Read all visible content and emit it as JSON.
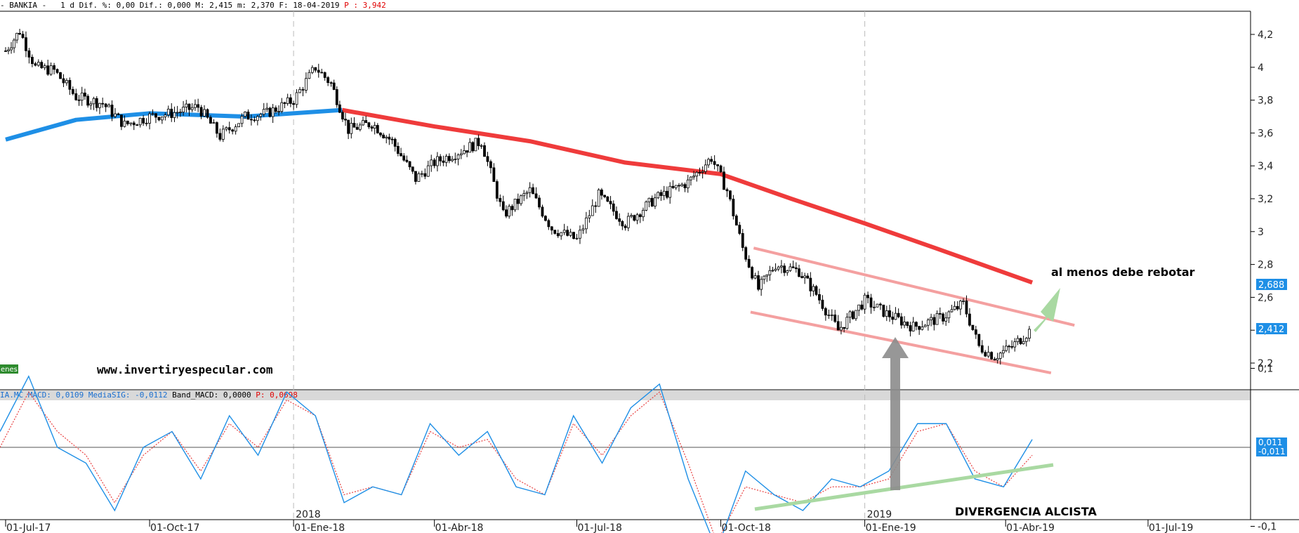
{
  "header": {
    "symbol": "- BANKIA -",
    "period": "1 d",
    "dif_pct": "Dif. %: 0,00",
    "dif": "Dif.: 0,000",
    "max": "M: 2,415",
    "min": "m: 2,370",
    "date": "F: 18-04-2019",
    "p": "P : 3,942"
  },
  "indicator_header": {
    "symbol": "IA.MC",
    "macd": "MACD: 0,0109",
    "signal": "MediaSIG: -0,0112",
    "band": "Band_MACD: 0,0000",
    "p": "P: 0,0698"
  },
  "volume_tag": "enes",
  "annotations": {
    "url": "www.invertiryespecular.com",
    "rebound": "al menos debe rebotar",
    "divergence": "DIVERGENCIA ALCISTA"
  },
  "price_labels": {
    "ma_value": "2,688",
    "last_value": "2,412",
    "ma_color": "#1e8fe6",
    "last_color": "#1e8fe6"
  },
  "macd_labels": {
    "macd_value": "0,011",
    "signal_value": "-0,011"
  },
  "colors": {
    "ma_down": "#ef3b3b",
    "ma_up": "#1e8fe6",
    "channel": "#f4a0a0",
    "up_arrow": "#a9d9a2",
    "gray_arrow": "#8c8c8c",
    "macd": "#1e8fe6",
    "signal": "#e84040",
    "divergence_line": "#a9d9a2"
  },
  "chart_data": [
    {
      "type": "candlestick",
      "title": "",
      "ylim": [
        2.05,
        4.3
      ],
      "yticks": [
        "4,2",
        "4",
        "3,8",
        "3,6",
        "3,4",
        "3,2",
        "3",
        "2,8",
        "2,6",
        "2,4",
        "2,2"
      ],
      "ytick_values": [
        4.2,
        4.0,
        3.8,
        3.6,
        3.4,
        3.2,
        3.0,
        2.8,
        2.6,
        2.4,
        2.2
      ],
      "x_labels": [
        "01-Jul-17",
        "01-Oct-17",
        "01-Ene-18",
        "01-Abr-18",
        "01-Jul-18",
        "01-Oct-18",
        "01-Ene-19",
        "01-Abr-19",
        "01-Jul-19"
      ],
      "year_labels": [
        "2018",
        "2019"
      ],
      "close": [
        {
          "x": "2017-07-01",
          "y": 4.1
        },
        {
          "x": "2017-07-10",
          "y": 4.22
        },
        {
          "x": "2017-07-20",
          "y": 4.0
        },
        {
          "x": "2017-08-01",
          "y": 3.98
        },
        {
          "x": "2017-08-15",
          "y": 3.82
        },
        {
          "x": "2017-09-01",
          "y": 3.78
        },
        {
          "x": "2017-09-15",
          "y": 3.65
        },
        {
          "x": "2017-10-01",
          "y": 3.7
        },
        {
          "x": "2017-10-15",
          "y": 3.72
        },
        {
          "x": "2017-11-01",
          "y": 3.76
        },
        {
          "x": "2017-11-15",
          "y": 3.58
        },
        {
          "x": "2017-12-01",
          "y": 3.7
        },
        {
          "x": "2017-12-15",
          "y": 3.72
        },
        {
          "x": "2018-01-01",
          "y": 3.8
        },
        {
          "x": "2018-01-15",
          "y": 4.0
        },
        {
          "x": "2018-01-25",
          "y": 3.9
        },
        {
          "x": "2018-02-05",
          "y": 3.62
        },
        {
          "x": "2018-02-20",
          "y": 3.66
        },
        {
          "x": "2018-03-05",
          "y": 3.55
        },
        {
          "x": "2018-03-20",
          "y": 3.32
        },
        {
          "x": "2018-04-01",
          "y": 3.42
        },
        {
          "x": "2018-04-20",
          "y": 3.5
        },
        {
          "x": "2018-05-01",
          "y": 3.55
        },
        {
          "x": "2018-05-15",
          "y": 3.1
        },
        {
          "x": "2018-06-01",
          "y": 3.25
        },
        {
          "x": "2018-06-15",
          "y": 3.02
        },
        {
          "x": "2018-07-01",
          "y": 2.95
        },
        {
          "x": "2018-07-15",
          "y": 3.22
        },
        {
          "x": "2018-08-01",
          "y": 3.05
        },
        {
          "x": "2018-08-20",
          "y": 3.2
        },
        {
          "x": "2018-09-10",
          "y": 3.3
        },
        {
          "x": "2018-09-25",
          "y": 3.45
        },
        {
          "x": "2018-10-05",
          "y": 3.25
        },
        {
          "x": "2018-10-15",
          "y": 2.9
        },
        {
          "x": "2018-10-25",
          "y": 2.65
        },
        {
          "x": "2018-11-05",
          "y": 2.8
        },
        {
          "x": "2018-11-20",
          "y": 2.76
        },
        {
          "x": "2018-12-01",
          "y": 2.62
        },
        {
          "x": "2018-12-15",
          "y": 2.4
        },
        {
          "x": "2019-01-01",
          "y": 2.58
        },
        {
          "x": "2019-01-15",
          "y": 2.5
        },
        {
          "x": "2019-02-01",
          "y": 2.42
        },
        {
          "x": "2019-02-20",
          "y": 2.48
        },
        {
          "x": "2019-03-05",
          "y": 2.56
        },
        {
          "x": "2019-03-15",
          "y": 2.3
        },
        {
          "x": "2019-03-25",
          "y": 2.24
        },
        {
          "x": "2019-04-05",
          "y": 2.3
        },
        {
          "x": "2019-04-18",
          "y": 2.41
        }
      ],
      "moving_average": [
        {
          "x": "2017-07-01",
          "y": 3.56
        },
        {
          "x": "2017-08-15",
          "y": 3.68
        },
        {
          "x": "2017-10-01",
          "y": 3.72
        },
        {
          "x": "2017-12-01",
          "y": 3.7
        },
        {
          "x": "2018-02-01",
          "y": 3.74
        },
        {
          "x": "2018-04-01",
          "y": 3.64
        },
        {
          "x": "2018-06-01",
          "y": 3.55
        },
        {
          "x": "2018-08-01",
          "y": 3.42
        },
        {
          "x": "2018-10-01",
          "y": 3.35
        },
        {
          "x": "2018-11-15",
          "y": 3.2
        },
        {
          "x": "2019-01-01",
          "y": 3.05
        },
        {
          "x": "2019-02-15",
          "y": 2.9
        },
        {
          "x": "2019-04-18",
          "y": 2.69
        }
      ],
      "channel": {
        "upper": [
          {
            "x": "2018-10-22",
            "y": 2.9
          },
          {
            "x": "2019-05-15",
            "y": 2.43
          }
        ],
        "lower": [
          {
            "x": "2018-10-20",
            "y": 2.51
          },
          {
            "x": "2019-04-30",
            "y": 2.14
          }
        ]
      }
    },
    {
      "type": "line",
      "title": "",
      "ylim": [
        -0.14,
        0.11
      ],
      "yticks": [
        "0,1",
        "-0,1"
      ],
      "ytick_values": [
        0.1,
        -0.1
      ],
      "series": [
        {
          "name": "MACD",
          "values": [
            0.02,
            0.09,
            0.0,
            -0.02,
            -0.08,
            0.0,
            0.02,
            -0.04,
            0.04,
            -0.01,
            0.07,
            0.04,
            -0.07,
            -0.05,
            -0.06,
            0.03,
            -0.01,
            0.02,
            -0.05,
            -0.06,
            0.04,
            -0.02,
            0.05,
            0.08,
            -0.04,
            -0.13,
            -0.03,
            -0.06,
            -0.08,
            -0.04,
            -0.05,
            -0.03,
            0.03,
            0.03,
            -0.04,
            -0.05,
            0.01
          ]
        },
        {
          "name": "MediaSIG",
          "values": [
            0.0,
            0.07,
            0.02,
            -0.01,
            -0.07,
            -0.01,
            0.02,
            -0.03,
            0.03,
            0.0,
            0.06,
            0.04,
            -0.06,
            -0.05,
            -0.06,
            0.02,
            0.0,
            0.01,
            -0.04,
            -0.06,
            0.03,
            -0.01,
            0.04,
            0.07,
            -0.02,
            -0.12,
            -0.05,
            -0.06,
            -0.07,
            -0.05,
            -0.05,
            -0.04,
            0.02,
            0.03,
            -0.03,
            -0.05,
            -0.01
          ]
        }
      ],
      "zero_line": 0
    }
  ]
}
